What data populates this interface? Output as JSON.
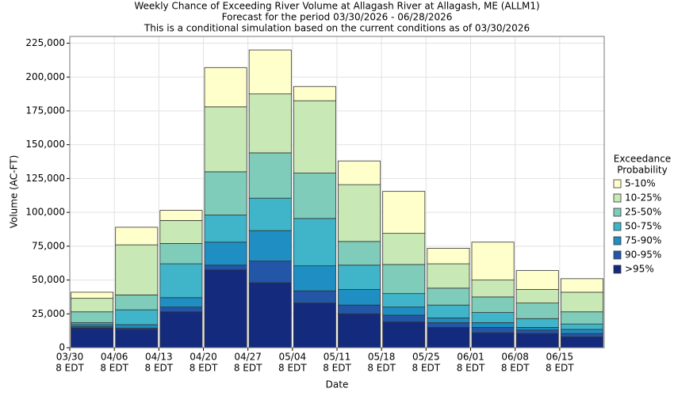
{
  "chart_data": {
    "type": "stacked-bar",
    "title": "Weekly Chance of Exceeding River Volume at Allagash River at Allagash, ME (ALLM1)",
    "subtitle": "Forecast for the period 03/30/2026 - 06/28/2026",
    "note": "This is a conditional simulation based on the current conditions as of 03/30/2026",
    "x_label": "Date",
    "y_label": "Volume (AC-FT)",
    "legend_title": [
      "Exceedance",
      "Probability"
    ],
    "categories": [
      "03/30",
      "04/06",
      "04/13",
      "04/20",
      "04/27",
      "05/04",
      "05/11",
      "05/18",
      "05/25",
      "06/01",
      "06/08",
      "06/15"
    ],
    "tick_suffix": "8 EDT",
    "series": [
      {
        "name": ">95%",
        "color": "#142a7c",
        "values": [
          14500,
          13500,
          26500,
          57500,
          48000,
          33000,
          25000,
          19000,
          15000,
          11000,
          10500,
          8000
        ]
      },
      {
        "name": "90-95%",
        "color": "#2356a6",
        "values": [
          1000,
          1000,
          3500,
          3500,
          16000,
          9000,
          6500,
          5000,
          3500,
          4000,
          2500,
          2500
        ]
      },
      {
        "name": "75-90%",
        "color": "#1f8ec3",
        "values": [
          1500,
          2500,
          7000,
          17000,
          22500,
          18500,
          11500,
          6000,
          3500,
          3500,
          2000,
          3000
        ]
      },
      {
        "name": "50-75%",
        "color": "#40b5c9",
        "values": [
          1500,
          11000,
          25000,
          20000,
          24000,
          35000,
          18000,
          10000,
          9500,
          7500,
          6500,
          4000
        ]
      },
      {
        "name": "25-50%",
        "color": "#80ccbb",
        "values": [
          8000,
          11000,
          15000,
          32000,
          33500,
          33500,
          17500,
          21500,
          12500,
          11500,
          11500,
          9000
        ]
      },
      {
        "name": "10-25%",
        "color": "#c8e9b5",
        "values": [
          10000,
          37000,
          17000,
          48000,
          43500,
          53500,
          42000,
          23000,
          18000,
          12500,
          10000,
          14500
        ]
      },
      {
        "name": "5-10%",
        "color": "#ffffcc",
        "values": [
          4500,
          13000,
          7500,
          29000,
          32500,
          10500,
          17500,
          31000,
          11500,
          28000,
          14000,
          10000
        ]
      }
    ],
    "ylim": [
      0,
      230000
    ],
    "yticks": [
      0,
      {
        "value": 25000,
        "label": "25,000"
      },
      {
        "value": 50000,
        "label": "50,000"
      },
      {
        "value": 75000,
        "label": "75,000"
      },
      {
        "value": 100000,
        "label": "100,000"
      },
      {
        "value": 125000,
        "label": "125,000"
      },
      {
        "value": 150000,
        "label": "150,000"
      },
      {
        "value": 175000,
        "label": "175,000"
      },
      {
        "value": 200000,
        "label": "200,000"
      },
      {
        "value": 225000,
        "label": "225,000"
      }
    ],
    "grid": true
  }
}
